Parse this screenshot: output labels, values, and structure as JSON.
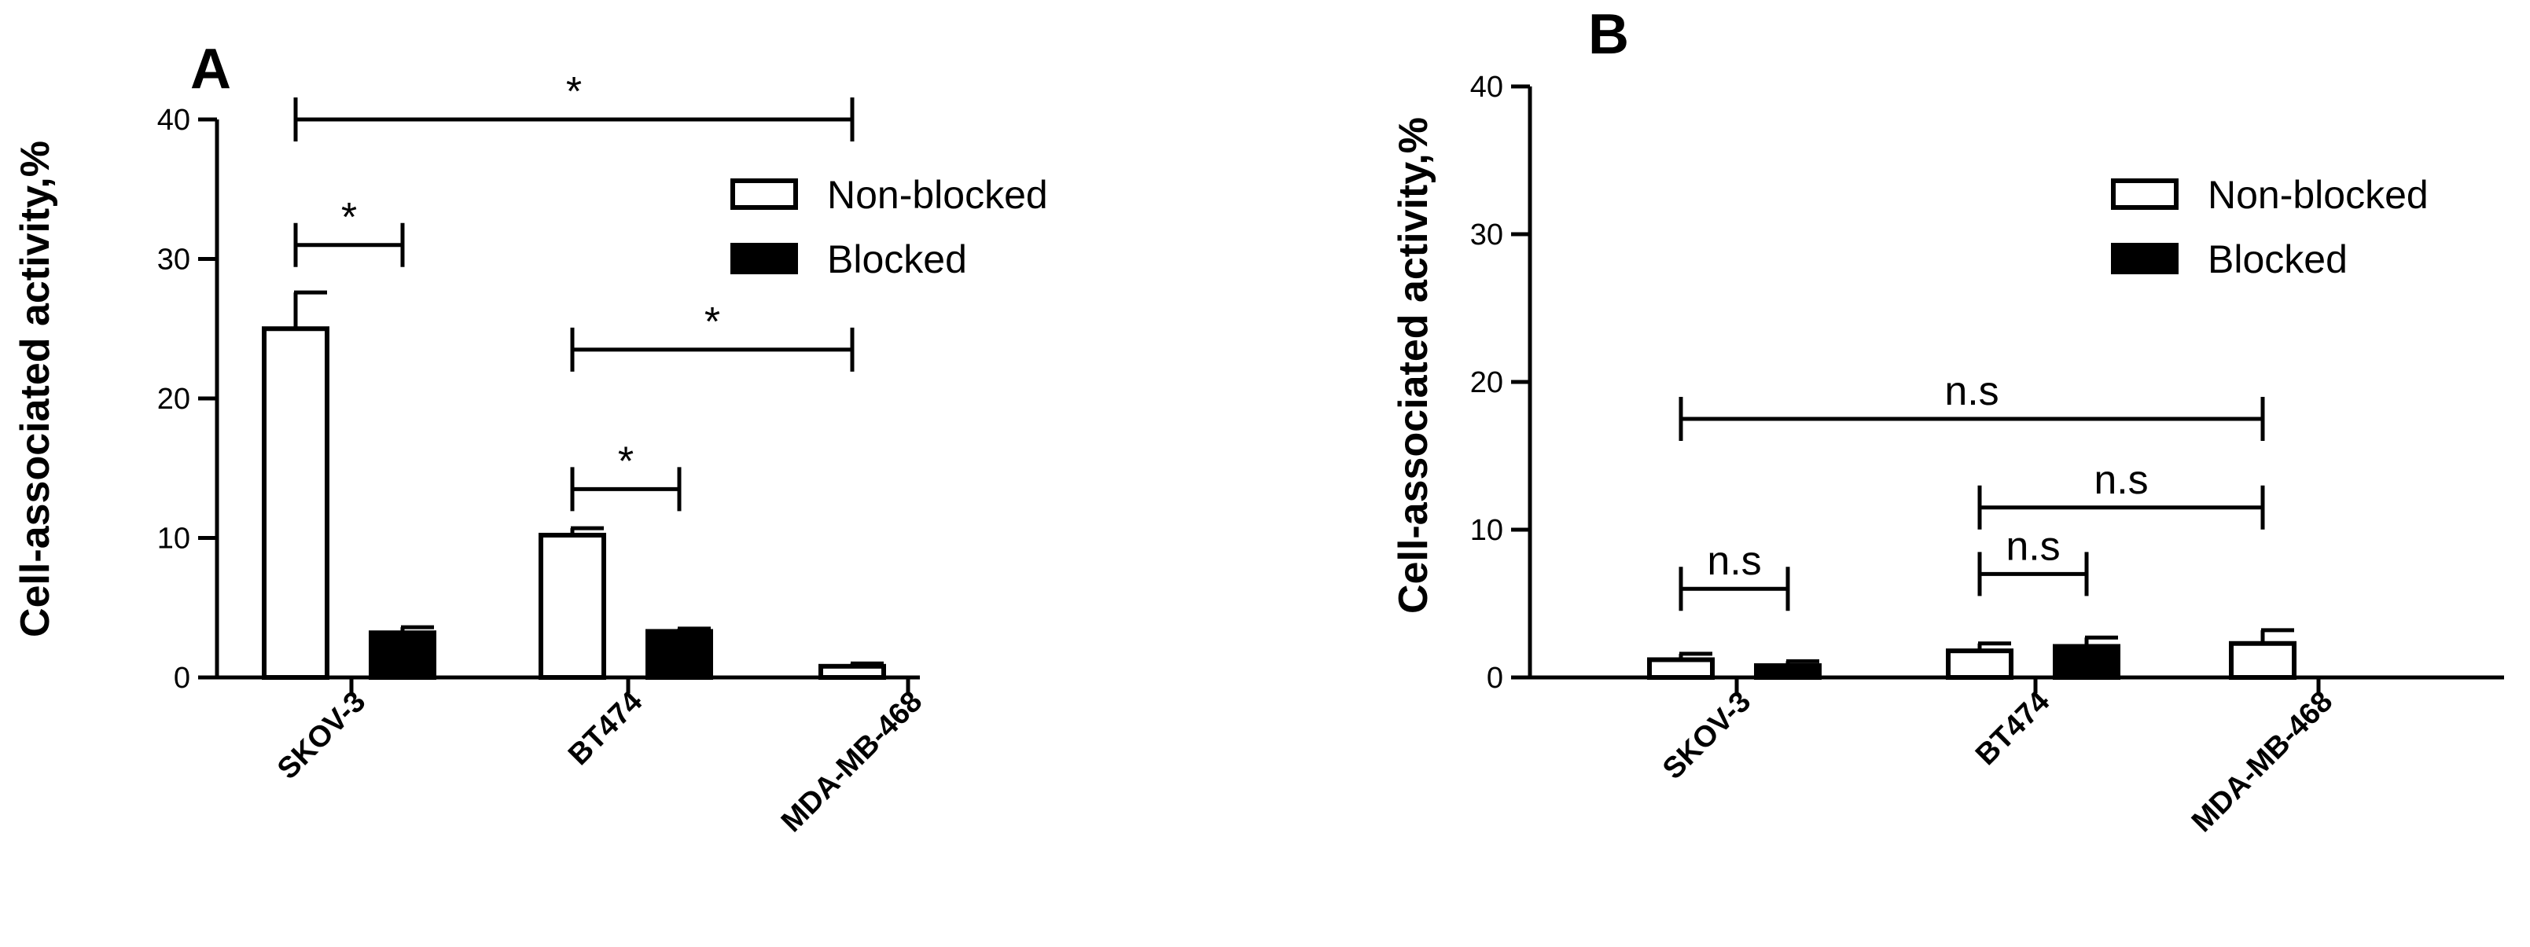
{
  "chart_data": [
    {
      "type": "bar",
      "panel": "A",
      "ylabel": "Cell-associated activity,%",
      "ylim": [
        0,
        40
      ],
      "yticks": [
        "0",
        "10",
        "20",
        "30",
        "40"
      ],
      "categories": [
        "SKOV-3",
        "BT474",
        "MDA-MB-468"
      ],
      "series": [
        {
          "name": "Non-blocked",
          "fill": "#ffffff",
          "values": [
            25.0,
            10.2,
            0.8
          ],
          "errors": [
            2.6,
            0.5,
            0.2
          ]
        },
        {
          "name": "Blocked",
          "fill": "#000000",
          "values": [
            3.2,
            3.3,
            0.0
          ],
          "errors": [
            0.4,
            0.2,
            0.0
          ]
        }
      ],
      "annotations": [
        {
          "label": "*",
          "from": "SKOV-3 Non-blocked",
          "to": "SKOV-3 Blocked",
          "y": 31
        },
        {
          "label": "*",
          "from": "SKOV-3 Non-blocked",
          "to": "MDA-MB-468 Non-blocked",
          "y": 40
        },
        {
          "label": "*",
          "from": "BT474 Non-blocked",
          "to": "BT474 Blocked",
          "y": 13.5
        },
        {
          "label": "*",
          "from": "BT474 Non-blocked",
          "to": "MDA-MB-468 Non-blocked",
          "y": 23.5
        }
      ],
      "legend_position": "top-right"
    },
    {
      "type": "bar",
      "panel": "B",
      "ylabel": "Cell-associated activity,%",
      "ylim": [
        0,
        40
      ],
      "yticks": [
        "0",
        "10",
        "20",
        "30",
        "40"
      ],
      "categories": [
        "SKOV-3",
        "BT474",
        "MDA-MB-468"
      ],
      "series": [
        {
          "name": "Non-blocked",
          "fill": "#ffffff",
          "values": [
            1.2,
            1.8,
            2.3
          ],
          "errors": [
            0.4,
            0.5,
            0.9
          ]
        },
        {
          "name": "Blocked",
          "fill": "#000000",
          "values": [
            0.8,
            2.1,
            0.0
          ],
          "errors": [
            0.3,
            0.6,
            0.0
          ]
        }
      ],
      "annotations": [
        {
          "label": "n.s",
          "from": "SKOV-3 Non-blocked",
          "to": "SKOV-3 Blocked",
          "y": 6
        },
        {
          "label": "n.s",
          "from": "SKOV-3 Non-blocked",
          "to": "MDA-MB-468 Non-blocked",
          "y": 17.5
        },
        {
          "label": "n.s",
          "from": "BT474 Non-blocked",
          "to": "BT474 Blocked",
          "y": 7
        },
        {
          "label": "n.s",
          "from": "BT474 Non-blocked",
          "to": "MDA-MB-468 Non-blocked",
          "y": 11.5
        }
      ],
      "legend_position": "top-right"
    }
  ]
}
